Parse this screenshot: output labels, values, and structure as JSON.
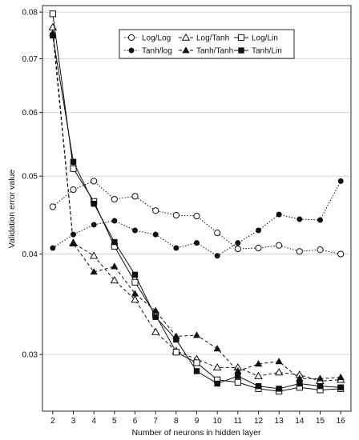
{
  "chart_data": {
    "type": "line",
    "title": "",
    "xlabel": "Number of neurons in hidden layer",
    "ylabel": "Validation error value",
    "x": [
      2,
      3,
      4,
      5,
      6,
      7,
      8,
      9,
      10,
      11,
      12,
      13,
      14,
      15,
      16
    ],
    "xlim": [
      1.5,
      16.5
    ],
    "ylim": [
      0.0255,
      0.0815
    ],
    "y_scale": "log",
    "yticks": [
      0.03,
      0.04,
      0.05,
      0.06,
      0.07,
      0.08
    ],
    "ytick_labels": [
      "0.03",
      "0.04",
      "0.05",
      "0.06",
      "0.07",
      "0.08"
    ],
    "grid": "horizontal",
    "legend_position": "top-right",
    "series": [
      {
        "name": "Log/Log",
        "marker": "open-circle",
        "dash": "dotted",
        "values": [
          0.0458,
          0.0481,
          0.0493,
          0.0468,
          0.0472,
          0.0453,
          0.0447,
          0.0446,
          0.0425,
          0.0406,
          0.0407,
          0.041,
          0.0403,
          0.0405,
          0.04
        ]
      },
      {
        "name": "Log/Tanh",
        "marker": "open-triangle",
        "dash": "dashed",
        "values": [
          0.0766,
          0.0413,
          0.0398,
          0.0371,
          0.0351,
          0.032,
          0.0303,
          0.0296,
          0.0289,
          0.0289,
          0.0282,
          0.0285,
          0.0283,
          0.0278,
          0.0279
        ]
      },
      {
        "name": "Log/Lin",
        "marker": "open-square",
        "dash": "solid",
        "values": [
          0.0796,
          0.0511,
          0.0465,
          0.0409,
          0.0369,
          0.0336,
          0.0302,
          0.0293,
          0.0279,
          0.0277,
          0.0272,
          0.027,
          0.0273,
          0.0271,
          0.0272
        ]
      },
      {
        "name": "Tanh/log",
        "marker": "filled-circle",
        "dash": "dotted",
        "values": [
          0.0407,
          0.0423,
          0.0435,
          0.044,
          0.0428,
          0.0423,
          0.0407,
          0.0413,
          0.0398,
          0.0413,
          0.0428,
          0.0448,
          0.0442,
          0.0441,
          0.0493
        ]
      },
      {
        "name": "Tanh/Tanh",
        "marker": "filled-triangle",
        "dash": "dashed",
        "values": [
          0.0753,
          0.0412,
          0.038,
          0.0386,
          0.0357,
          0.034,
          0.0316,
          0.0317,
          0.0305,
          0.0286,
          0.0292,
          0.0294,
          0.028,
          0.028,
          0.0281
        ]
      },
      {
        "name": "Tanh/Lin",
        "marker": "filled-square",
        "dash": "solid",
        "values": [
          0.0748,
          0.0521,
          0.0462,
          0.0414,
          0.0377,
          0.0334,
          0.0313,
          0.0286,
          0.0276,
          0.0282,
          0.0274,
          0.0272,
          0.0276,
          0.0274,
          0.0273
        ]
      }
    ]
  }
}
